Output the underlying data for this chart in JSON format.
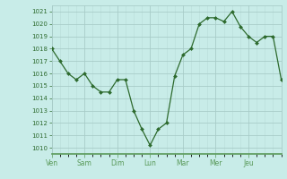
{
  "x_values": [
    0,
    0.25,
    0.5,
    0.75,
    1.0,
    1.25,
    1.5,
    1.75,
    2.0,
    2.25,
    2.5,
    2.75,
    3.0,
    3.25,
    3.5,
    3.75,
    4.0,
    4.25,
    4.5,
    4.75,
    5.0,
    5.25,
    5.5,
    5.75,
    6.0,
    6.25,
    6.5,
    6.75,
    7.0
  ],
  "y_values": [
    1018,
    1017,
    1016,
    1015.5,
    1016,
    1015,
    1014.5,
    1014.5,
    1015.5,
    1015.5,
    1013,
    1011.5,
    1010.2,
    1011.5,
    1012,
    1015.8,
    1017.5,
    1018,
    1020,
    1020.5,
    1020.5,
    1020.2,
    1021,
    1019.8,
    1019,
    1018.5,
    1019,
    1019,
    1015.5
  ],
  "day_labels": [
    "Ven",
    "Sam",
    "Dim",
    "Lun",
    "Mar",
    "Mer",
    "Jeu"
  ],
  "day_positions": [
    0,
    1,
    2,
    3,
    4,
    5,
    6
  ],
  "ytick_min": 1010,
  "ytick_max": 1021,
  "line_color": "#2d6a2d",
  "marker_color": "#2d6a2d",
  "bg_color": "#c8ece8",
  "grid_major_color": "#a8ccc8",
  "grid_minor_color": "#b8dcd8",
  "axis_label_color": "#2d6a2d",
  "tick_label_color": "#2d6a2d",
  "spine_color": "#5a9a5a"
}
